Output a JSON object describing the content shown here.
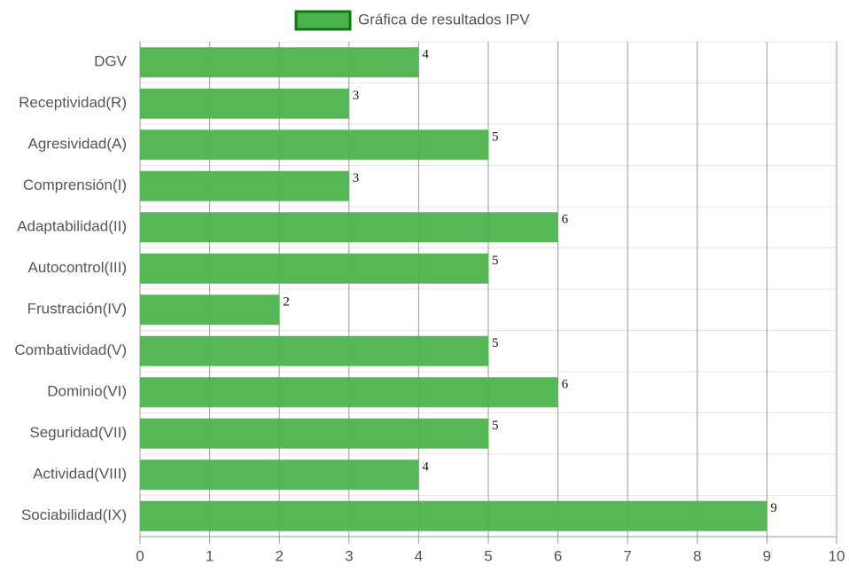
{
  "chart_data": {
    "type": "bar",
    "orientation": "horizontal",
    "categories": [
      "DGV",
      "Receptividad(R)",
      "Agresividad(A)",
      "Comprensión(I)",
      "Adaptabilidad(II)",
      "Autocontrol(III)",
      "Frustración(IV)",
      "Combatividad(V)",
      "Dominio(VI)",
      "Seguridad(VII)",
      "Actividad(VIII)",
      "Sociabilidad(IX)"
    ],
    "series": [
      {
        "name": "Gráfica de resultados IPV",
        "color": "#4db34d",
        "values": [
          4,
          3,
          5,
          3,
          6,
          5,
          2,
          5,
          6,
          5,
          4,
          9
        ]
      }
    ],
    "xlim": [
      0,
      10
    ],
    "xticks": [
      0,
      1,
      2,
      3,
      4,
      5,
      6,
      7,
      8,
      9,
      10
    ],
    "grid": true,
    "legend": "top"
  }
}
